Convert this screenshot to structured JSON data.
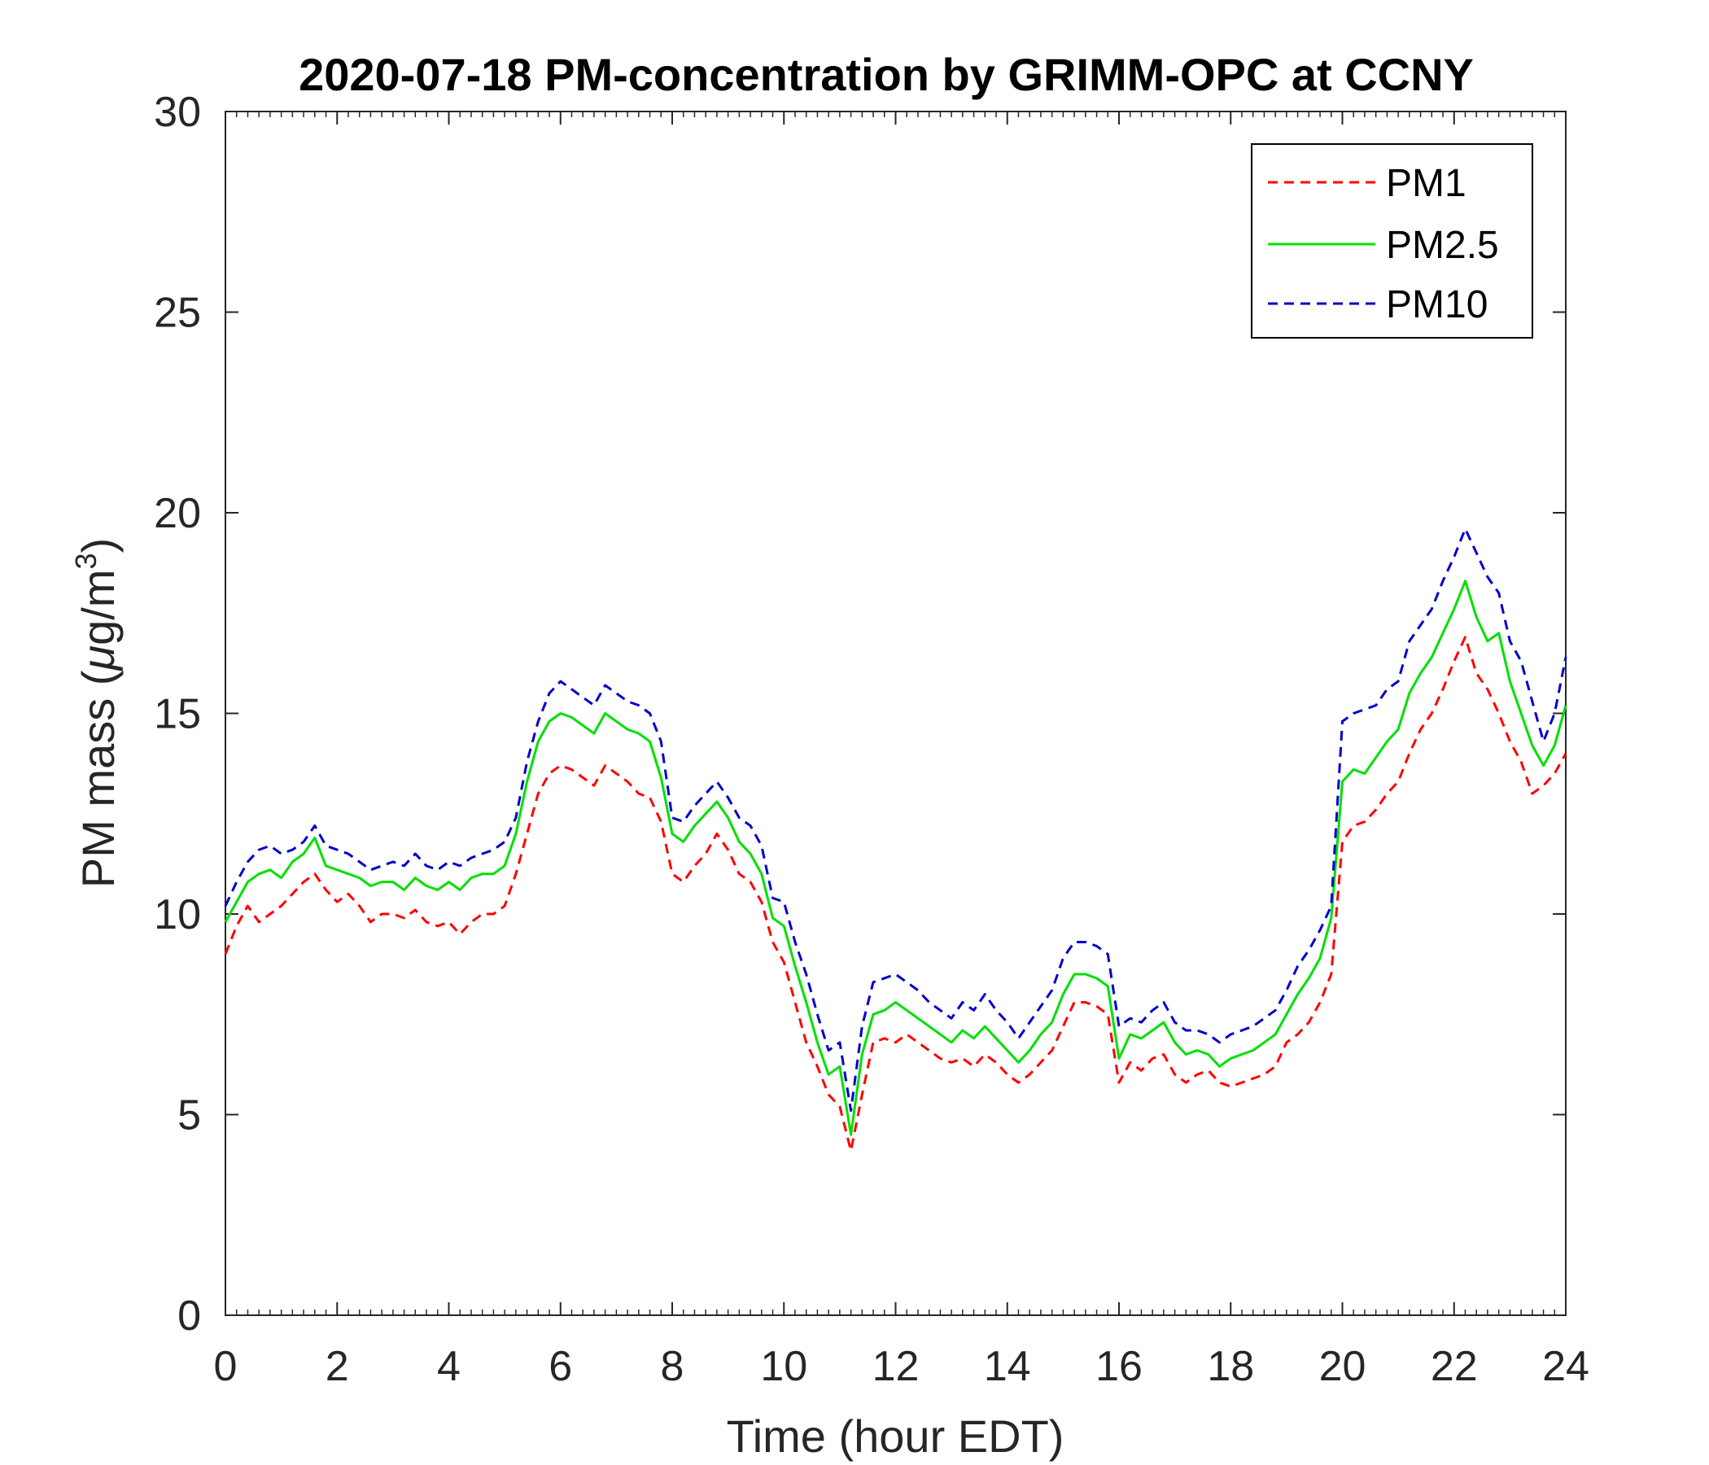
{
  "chart_data": {
    "type": "line",
    "title": "2020-07-18 PM-concentration by GRIMM-OPC at CCNY",
    "xlabel": "Time (hour EDT)",
    "ylabel": {
      "prefix": "PM mass (",
      "mu": "μ",
      "unit": "g/m",
      "sup": "3",
      "suffix": ")"
    },
    "xlim": [
      0,
      24
    ],
    "ylim": [
      0,
      30
    ],
    "xticks": [
      0,
      2,
      4,
      6,
      8,
      10,
      12,
      14,
      16,
      18,
      20,
      22,
      24
    ],
    "yticks": [
      0,
      5,
      10,
      15,
      20,
      25,
      30
    ],
    "xticklabels": [
      "0",
      "2",
      "4",
      "6",
      "8",
      "10",
      "12",
      "14",
      "16",
      "18",
      "20",
      "22",
      "24"
    ],
    "yticklabels": [
      "0",
      "5",
      "10",
      "15",
      "20",
      "25",
      "30"
    ],
    "legend": {
      "location": "top-right",
      "entries": [
        "PM1",
        "PM2.5",
        "PM10"
      ]
    },
    "x": [
      0,
      0.2,
      0.4,
      0.6,
      0.8,
      1.0,
      1.2,
      1.4,
      1.6,
      1.8,
      2.0,
      2.2,
      2.4,
      2.6,
      2.8,
      3.0,
      3.2,
      3.4,
      3.6,
      3.8,
      4.0,
      4.2,
      4.4,
      4.6,
      4.8,
      5.0,
      5.2,
      5.4,
      5.6,
      5.8,
      6.0,
      6.2,
      6.4,
      6.6,
      6.8,
      7.0,
      7.2,
      7.4,
      7.6,
      7.8,
      8.0,
      8.2,
      8.4,
      8.6,
      8.8,
      9.0,
      9.2,
      9.4,
      9.6,
      9.8,
      10.0,
      10.2,
      10.4,
      10.6,
      10.8,
      11.0,
      11.2,
      11.4,
      11.6,
      11.8,
      12.0,
      12.2,
      12.4,
      12.6,
      12.8,
      13.0,
      13.2,
      13.4,
      13.6,
      13.8,
      14.0,
      14.2,
      14.4,
      14.6,
      14.8,
      15.0,
      15.2,
      15.4,
      15.6,
      15.8,
      16.0,
      16.2,
      16.4,
      16.6,
      16.8,
      17.0,
      17.2,
      17.4,
      17.6,
      17.8,
      18.0,
      18.2,
      18.4,
      18.6,
      18.8,
      19.0,
      19.2,
      19.4,
      19.6,
      19.8,
      20.0,
      20.2,
      20.4,
      20.6,
      20.8,
      21.0,
      21.2,
      21.4,
      21.6,
      21.8,
      22.0,
      22.2,
      22.4,
      22.6,
      22.8,
      23.0,
      23.2,
      23.4,
      23.6,
      23.8,
      24.0
    ],
    "series": [
      {
        "name": "PM1",
        "color": "#ff0000",
        "style": "dashed",
        "values": [
          9.0,
          9.7,
          10.2,
          9.8,
          10.0,
          10.2,
          10.5,
          10.8,
          11.0,
          10.6,
          10.3,
          10.5,
          10.2,
          9.8,
          10.0,
          10.0,
          9.9,
          10.1,
          9.8,
          9.7,
          9.8,
          9.5,
          9.8,
          10.0,
          10.0,
          10.2,
          11.0,
          12.0,
          13.0,
          13.5,
          13.7,
          13.6,
          13.4,
          13.2,
          13.7,
          13.5,
          13.3,
          13.0,
          12.9,
          12.3,
          11.0,
          10.8,
          11.2,
          11.5,
          12.0,
          11.6,
          11.0,
          10.8,
          10.3,
          9.3,
          8.8,
          7.8,
          6.8,
          6.2,
          5.5,
          5.2,
          4.1,
          5.5,
          6.8,
          6.9,
          6.8,
          7.0,
          6.8,
          6.6,
          6.4,
          6.3,
          6.4,
          6.2,
          6.5,
          6.3,
          6.0,
          5.8,
          6.0,
          6.3,
          6.6,
          7.2,
          7.8,
          7.8,
          7.7,
          7.5,
          5.8,
          6.3,
          6.1,
          6.4,
          6.5,
          6.0,
          5.8,
          6.0,
          6.1,
          5.8,
          5.7,
          5.8,
          5.9,
          6.0,
          6.2,
          6.8,
          7.0,
          7.3,
          7.8,
          8.5,
          11.8,
          12.2,
          12.3,
          12.6,
          13.0,
          13.3,
          14.0,
          14.6,
          15.0,
          15.6,
          16.3,
          16.9,
          16.0,
          15.6,
          15.0,
          14.3,
          13.8,
          13.0,
          13.2,
          13.5,
          14.0
        ]
      },
      {
        "name": "PM2.5",
        "color": "#00e000",
        "style": "solid",
        "values": [
          9.8,
          10.3,
          10.8,
          11.0,
          11.1,
          10.9,
          11.3,
          11.5,
          11.9,
          11.2,
          11.1,
          11.0,
          10.9,
          10.7,
          10.8,
          10.8,
          10.6,
          10.9,
          10.7,
          10.6,
          10.8,
          10.6,
          10.9,
          11.0,
          11.0,
          11.2,
          12.0,
          13.3,
          14.3,
          14.8,
          15.0,
          14.9,
          14.7,
          14.5,
          15.0,
          14.8,
          14.6,
          14.5,
          14.3,
          13.4,
          12.0,
          11.8,
          12.2,
          12.5,
          12.8,
          12.4,
          11.8,
          11.5,
          11.0,
          9.9,
          9.7,
          8.7,
          7.8,
          6.8,
          6.0,
          6.2,
          4.5,
          6.5,
          7.5,
          7.6,
          7.8,
          7.6,
          7.4,
          7.2,
          7.0,
          6.8,
          7.1,
          6.9,
          7.2,
          6.9,
          6.6,
          6.3,
          6.6,
          7.0,
          7.3,
          8.0,
          8.5,
          8.5,
          8.4,
          8.2,
          6.4,
          7.0,
          6.9,
          7.1,
          7.3,
          6.8,
          6.5,
          6.6,
          6.5,
          6.2,
          6.4,
          6.5,
          6.6,
          6.8,
          7.0,
          7.5,
          8.0,
          8.4,
          8.9,
          9.9,
          13.3,
          13.6,
          13.5,
          13.9,
          14.3,
          14.6,
          15.5,
          16.0,
          16.4,
          17.0,
          17.6,
          18.3,
          17.4,
          16.8,
          17.0,
          15.8,
          15.0,
          14.2,
          13.7,
          14.2,
          15.2
        ]
      },
      {
        "name": "PM10",
        "color": "#0000cc",
        "style": "dashed",
        "values": [
          10.2,
          10.8,
          11.3,
          11.6,
          11.7,
          11.5,
          11.6,
          11.8,
          12.2,
          11.7,
          11.6,
          11.5,
          11.3,
          11.1,
          11.2,
          11.3,
          11.2,
          11.5,
          11.2,
          11.1,
          11.3,
          11.2,
          11.4,
          11.5,
          11.6,
          11.8,
          12.4,
          13.8,
          14.8,
          15.5,
          15.8,
          15.6,
          15.4,
          15.2,
          15.7,
          15.5,
          15.3,
          15.2,
          15.0,
          14.3,
          12.4,
          12.3,
          12.7,
          13.0,
          13.3,
          12.9,
          12.4,
          12.2,
          11.7,
          10.4,
          10.3,
          9.3,
          8.5,
          7.5,
          6.6,
          6.8,
          5.1,
          7.2,
          8.3,
          8.4,
          8.5,
          8.3,
          8.1,
          7.8,
          7.6,
          7.4,
          7.8,
          7.6,
          8.0,
          7.6,
          7.3,
          6.9,
          7.3,
          7.7,
          8.1,
          8.9,
          9.3,
          9.3,
          9.2,
          9.0,
          7.2,
          7.4,
          7.3,
          7.6,
          7.8,
          7.3,
          7.1,
          7.1,
          7.0,
          6.8,
          7.0,
          7.1,
          7.2,
          7.4,
          7.6,
          8.1,
          8.7,
          9.1,
          9.6,
          10.2,
          14.8,
          15.0,
          15.1,
          15.2,
          15.6,
          15.8,
          16.8,
          17.2,
          17.6,
          18.3,
          18.9,
          19.6,
          19.0,
          18.4,
          18.0,
          16.8,
          16.3,
          15.3,
          14.3,
          15.0,
          16.4
        ]
      }
    ]
  }
}
